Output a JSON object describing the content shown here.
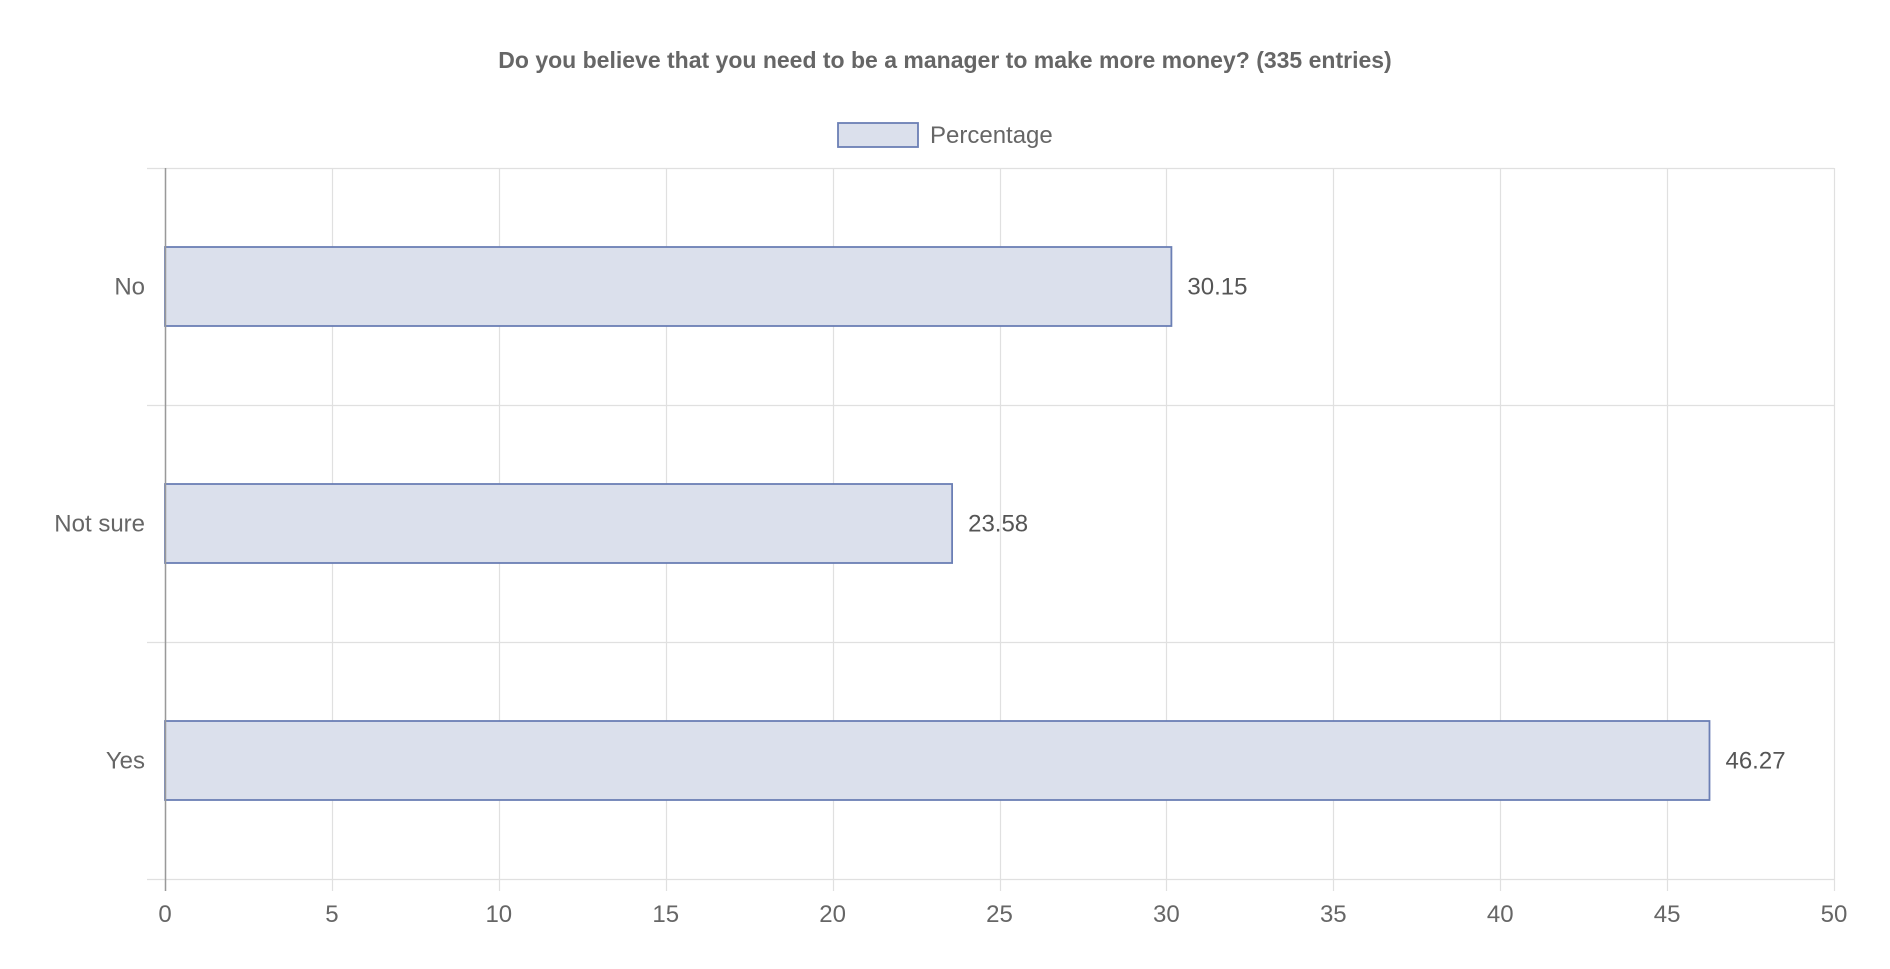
{
  "chart_data": {
    "type": "bar",
    "orientation": "horizontal",
    "title": "Do you believe that you need to be a manager to make more money? (335 entries)",
    "categories": [
      "No",
      "Not sure",
      "Yes"
    ],
    "series": [
      {
        "name": "Percentage",
        "values": [
          30.15,
          23.58,
          46.27
        ]
      }
    ],
    "data_labels": [
      "30.15",
      "23.58",
      "46.27"
    ],
    "xlim": [
      0,
      50
    ],
    "x_ticks": [
      0,
      5,
      10,
      15,
      20,
      25,
      30,
      35,
      40,
      45,
      50
    ],
    "xlabel": "",
    "ylabel": "",
    "grid": true,
    "legend_position": "top-center",
    "colors": {
      "bar_fill": "#dbe0ec",
      "bar_border": "#6b7fb5",
      "grid": "#e0e0e0",
      "axis": "#999999",
      "text": "#666666"
    }
  }
}
